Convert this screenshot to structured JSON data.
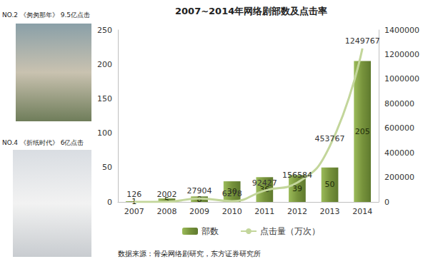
{
  "chart_data": {
    "type": "bar",
    "title": "2007~2014年网络剧部数及点击率",
    "categories": [
      "2007",
      "2008",
      "2009",
      "2010",
      "2011",
      "2012",
      "2013",
      "2014"
    ],
    "series": [
      {
        "name": "部数",
        "type": "bar",
        "color": "#77933c",
        "values": [
          1,
          5,
          8,
          30,
          36,
          39,
          50,
          205
        ],
        "data_labels": true
      },
      {
        "name": "点击量（万次）",
        "type": "line",
        "color": "#c3d69b",
        "axis": "y2",
        "values": [
          126,
          2002,
          27904,
          6278,
          92427,
          156584,
          453767,
          1249767
        ],
        "data_labels": true
      }
    ],
    "ylim": [
      0,
      250
    ],
    "yticks": [
      0,
      50,
      100,
      150,
      200,
      250
    ],
    "y2lim": [
      0,
      1400000
    ],
    "y2ticks": [
      0,
      200000,
      400000,
      600000,
      800000,
      1000000,
      1200000,
      1400000
    ],
    "legend": "bottom",
    "grid": false,
    "annotations": [
      "NO.2 《匆匆那年》 9.5亿点击",
      "NO.4 《折纸时代》 6亿点击",
      "数据来源：骨朵网络剧研究，东方证券研究所"
    ]
  }
}
